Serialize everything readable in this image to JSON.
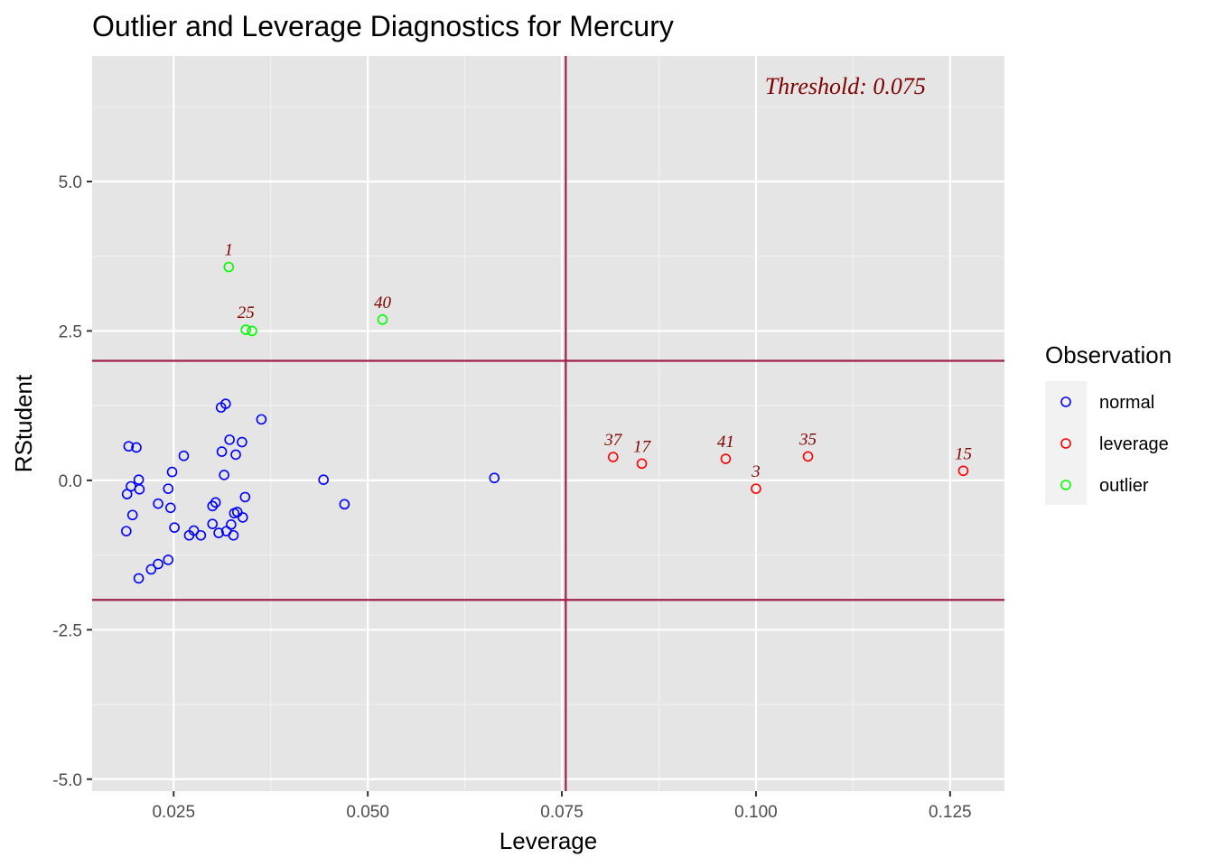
{
  "chart_data": {
    "type": "scatter",
    "title": "Outlier and Leverage Diagnostics for Mercury",
    "xlabel": "Leverage",
    "ylabel": "RStudent",
    "xlim": [
      0.0145,
      0.132
    ],
    "ylim": [
      -5.2,
      7.1
    ],
    "x_ticks": [
      {
        "value": 0.025,
        "label": "0.025"
      },
      {
        "value": 0.05,
        "label": "0.050"
      },
      {
        "value": 0.075,
        "label": "0.075"
      },
      {
        "value": 0.1,
        "label": "0.100"
      },
      {
        "value": 0.125,
        "label": "0.125"
      }
    ],
    "y_ticks": [
      {
        "value": -5,
        "label": "-5.0"
      },
      {
        "value": -2.5,
        "label": "-2.5"
      },
      {
        "value": 0,
        "label": "0.0"
      },
      {
        "value": 2.5,
        "label": "2.5"
      },
      {
        "value": 5,
        "label": "5.0"
      }
    ],
    "grid": true,
    "reference_lines": {
      "vertical": [
        0.0755
      ],
      "horizontal": [
        2,
        -2
      ],
      "color": "#a0204d"
    },
    "annotation": {
      "text": "Threshold: 0.075",
      "x": 0.1115,
      "y": 6.6,
      "color": "#800000"
    },
    "legend": {
      "title": "Observation",
      "placement": "right",
      "entries": [
        {
          "label": "normal",
          "color": "#0000ff"
        },
        {
          "label": "leverage",
          "color": "#ff0000"
        },
        {
          "label": "outlier",
          "color": "#00ff00"
        }
      ]
    },
    "label_color": "#800000",
    "series": [
      {
        "name": "normal",
        "color": "#0000ff",
        "points": [
          {
            "x": 0.0192,
            "y": 0.57
          },
          {
            "x": 0.0202,
            "y": 0.55
          },
          {
            "x": 0.019,
            "y": -0.23
          },
          {
            "x": 0.0195,
            "y": -0.1
          },
          {
            "x": 0.0205,
            "y": 0.01
          },
          {
            "x": 0.0206,
            "y": -0.15
          },
          {
            "x": 0.0189,
            "y": -0.85
          },
          {
            "x": 0.0197,
            "y": -0.58
          },
          {
            "x": 0.0205,
            "y": -1.64
          },
          {
            "x": 0.0221,
            "y": -1.49
          },
          {
            "x": 0.023,
            "y": -1.4
          },
          {
            "x": 0.0243,
            "y": -1.33
          },
          {
            "x": 0.023,
            "y": -0.39
          },
          {
            "x": 0.0243,
            "y": -0.14
          },
          {
            "x": 0.0248,
            "y": 0.14
          },
          {
            "x": 0.0246,
            "y": -0.46
          },
          {
            "x": 0.0251,
            "y": -0.79
          },
          {
            "x": 0.0263,
            "y": 0.41
          },
          {
            "x": 0.027,
            "y": -0.92
          },
          {
            "x": 0.0276,
            "y": -0.84
          },
          {
            "x": 0.0285,
            "y": -0.92
          },
          {
            "x": 0.03,
            "y": -0.73
          },
          {
            "x": 0.03,
            "y": -0.43
          },
          {
            "x": 0.0304,
            "y": -0.37
          },
          {
            "x": 0.0308,
            "y": -0.88
          },
          {
            "x": 0.0311,
            "y": 1.22
          },
          {
            "x": 0.0312,
            "y": 0.48
          },
          {
            "x": 0.0315,
            "y": 0.09
          },
          {
            "x": 0.0317,
            "y": 1.28
          },
          {
            "x": 0.0318,
            "y": -0.85
          },
          {
            "x": 0.0322,
            "y": 0.68
          },
          {
            "x": 0.0324,
            "y": -0.74
          },
          {
            "x": 0.0327,
            "y": -0.92
          },
          {
            "x": 0.0328,
            "y": -0.55
          },
          {
            "x": 0.033,
            "y": 0.43
          },
          {
            "x": 0.0332,
            "y": -0.53
          },
          {
            "x": 0.0338,
            "y": 0.64
          },
          {
            "x": 0.0339,
            "y": -0.62
          },
          {
            "x": 0.0342,
            "y": -0.28
          },
          {
            "x": 0.0363,
            "y": 1.02
          },
          {
            "x": 0.0443,
            "y": 0.01
          },
          {
            "x": 0.047,
            "y": -0.4
          },
          {
            "x": 0.0663,
            "y": 0.04
          }
        ]
      },
      {
        "name": "leverage",
        "color": "#ff0000",
        "points": [
          {
            "x": 0.0816,
            "y": 0.39,
            "label": "37"
          },
          {
            "x": 0.0853,
            "y": 0.28,
            "label": "17"
          },
          {
            "x": 0.0961,
            "y": 0.36,
            "label": "41"
          },
          {
            "x": 0.1,
            "y": -0.14,
            "label": "3"
          },
          {
            "x": 0.1067,
            "y": 0.4,
            "label": "35"
          },
          {
            "x": 0.1267,
            "y": 0.16,
            "label": "15"
          }
        ]
      },
      {
        "name": "outlier",
        "color": "#00ff00",
        "points": [
          {
            "x": 0.0321,
            "y": 3.57,
            "label": "1"
          },
          {
            "x": 0.0343,
            "y": 2.52,
            "label": "25"
          },
          {
            "x": 0.0351,
            "y": 2.5
          },
          {
            "x": 0.0519,
            "y": 2.69,
            "label": "40"
          }
        ]
      }
    ]
  }
}
